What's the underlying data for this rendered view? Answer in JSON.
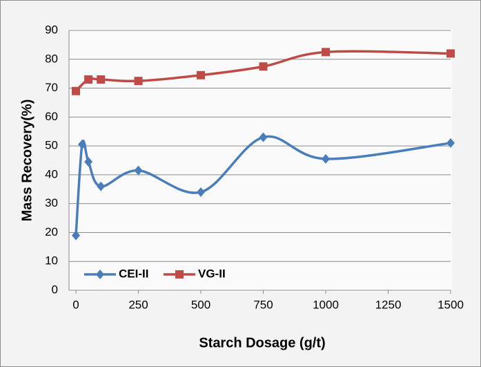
{
  "chart_data": {
    "type": "line",
    "x_label": "Starch Dosage (g/t)",
    "y_label": "Mass Recovery(%)",
    "series": [
      {
        "name": "CEI-II",
        "color": "#4a7ebb",
        "marker": "diamond",
        "x": [
          0,
          25,
          50,
          100,
          250,
          500,
          750,
          1000,
          1500
        ],
        "values": [
          19,
          50.5,
          44.5,
          36,
          41.5,
          34,
          53,
          45.5,
          51
        ]
      },
      {
        "name": "VG-II",
        "color": "#be4b48",
        "marker": "square",
        "x": [
          0,
          50,
          100,
          250,
          500,
          750,
          1000,
          1500
        ],
        "values": [
          69,
          73,
          73,
          72.5,
          74.5,
          77.5,
          82.5,
          82
        ]
      }
    ],
    "xlim": [
      0,
      1500
    ],
    "xticks": [
      0,
      250,
      500,
      750,
      1000,
      1250,
      1500
    ],
    "ylim": [
      0,
      90
    ],
    "yticks": [
      0,
      10,
      20,
      30,
      40,
      50,
      60,
      70,
      80,
      90
    ],
    "grid": true,
    "smooth": true,
    "legend": "bottom-left"
  }
}
